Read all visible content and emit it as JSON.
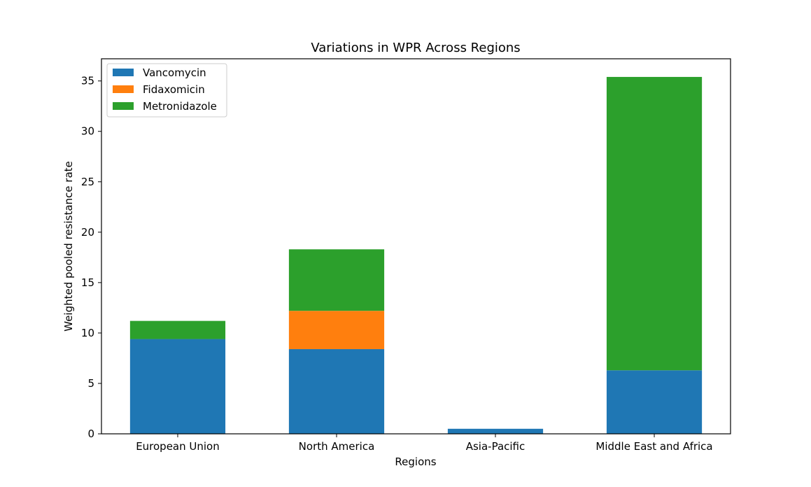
{
  "chart_data": {
    "type": "bar",
    "stacked": true,
    "title": "Variations in WPR Across Regions",
    "xlabel": "Regions",
    "ylabel": "Weighted pooled resistance rate",
    "categories": [
      "European Union",
      "North America",
      "Asia-Pacific",
      "Middle East and Africa"
    ],
    "series": [
      {
        "name": "Vancomycin",
        "color": "#1f77b4",
        "values": [
          9.4,
          8.4,
          0.5,
          6.3
        ]
      },
      {
        "name": "Fidaxomicin",
        "color": "#ff7f0e",
        "values": [
          0,
          3.8,
          0,
          0
        ]
      },
      {
        "name": "Metronidazole",
        "color": "#2ca02c",
        "values": [
          1.8,
          6.1,
          0,
          29.1
        ]
      }
    ],
    "ylim": [
      0,
      37.2
    ],
    "yticks": [
      0,
      5,
      10,
      15,
      20,
      25,
      30,
      35
    ],
    "grid": false,
    "legend_position": "top-left"
  }
}
